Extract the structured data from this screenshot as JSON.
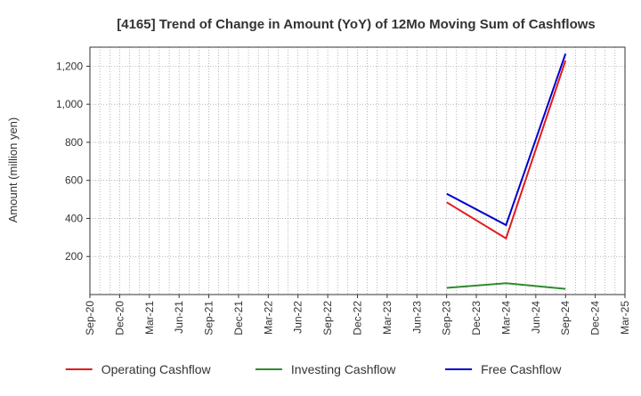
{
  "chart_data": {
    "type": "line",
    "title": "[4165]  Trend of Change in Amount (YoY) of 12Mo Moving Sum of Cashflows",
    "xlabel": "",
    "ylabel": "Amount (million yen)",
    "categories": [
      "Sep-20",
      "Dec-20",
      "Mar-21",
      "Jun-21",
      "Sep-21",
      "Dec-21",
      "Mar-22",
      "Jun-22",
      "Sep-22",
      "Dec-22",
      "Mar-23",
      "Jun-23",
      "Sep-23",
      "Dec-23",
      "Mar-24",
      "Jun-24",
      "Sep-24",
      "Dec-24",
      "Mar-25"
    ],
    "yticks": [
      200,
      400,
      600,
      800,
      1000,
      1200
    ],
    "ytick_labels": [
      "200",
      "400",
      "600",
      "800",
      "1,000",
      "1,200"
    ],
    "ylim": [
      0,
      1300
    ],
    "grid": true,
    "legend_position": "bottom",
    "series": [
      {
        "name": "Operating Cashflow",
        "color": "#e31a1c",
        "points": [
          {
            "x": "Sep-23",
            "y": 485
          },
          {
            "x": "Mar-24",
            "y": 295
          },
          {
            "x": "Sep-24",
            "y": 1230
          }
        ]
      },
      {
        "name": "Investing Cashflow",
        "color": "#2e8b2e",
        "points": [
          {
            "x": "Sep-23",
            "y": 35
          },
          {
            "x": "Mar-24",
            "y": 60
          },
          {
            "x": "Sep-24",
            "y": 30
          }
        ]
      },
      {
        "name": "Free Cashflow",
        "color": "#0000cc",
        "points": [
          {
            "x": "Sep-23",
            "y": 530
          },
          {
            "x": "Mar-24",
            "y": 365
          },
          {
            "x": "Sep-24",
            "y": 1265
          }
        ]
      }
    ]
  }
}
